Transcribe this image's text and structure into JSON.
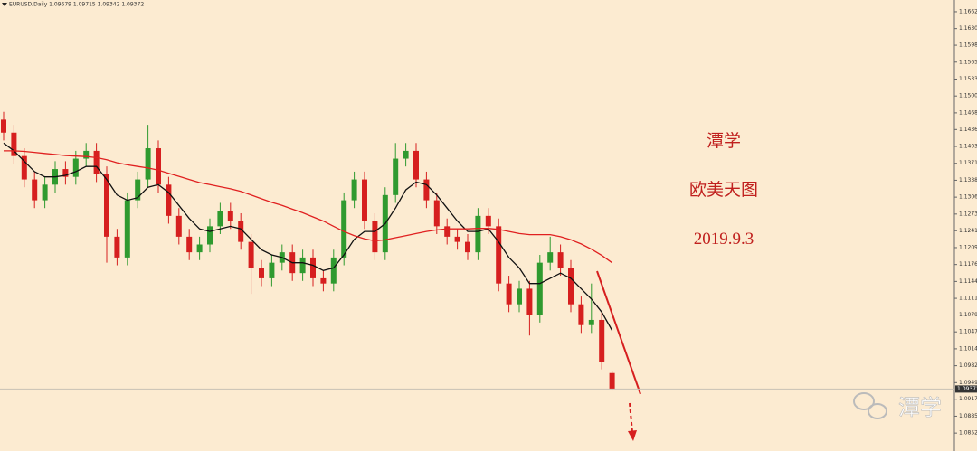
{
  "chart_data": {
    "type": "candlestick",
    "header": "EURUSD,Daily 1.09679 1.09715 1.09342 1.09372",
    "annotations": [
      "潭学",
      "欧美天图",
      "2019.9.3"
    ],
    "watermark": "潭学",
    "up_color": "#2f9a2f",
    "down_color": "#d61f1f",
    "candles": {
      "open": [
        1.1455,
        1.143,
        1.1385,
        1.134,
        1.13,
        1.133,
        1.136,
        1.1345,
        1.138,
        1.1395,
        1.135,
        1.123,
        1.119,
        1.13,
        1.134,
        1.14,
        1.133,
        1.127,
        1.123,
        1.12,
        1.1215,
        1.125,
        1.128,
        1.126,
        1.122,
        1.117,
        1.115,
        1.118,
        1.12,
        1.116,
        1.119,
        1.115,
        1.114,
        1.119,
        1.13,
        1.134,
        1.126,
        1.12,
        1.131,
        1.138,
        1.1395,
        1.134,
        1.13,
        1.125,
        1.123,
        1.122,
        1.12,
        1.127,
        1.125,
        1.114,
        1.11,
        1.113,
        1.108,
        1.118,
        1.12,
        1.117,
        1.11,
        1.106,
        1.107,
        1.09679
      ],
      "high": [
        1.147,
        1.1445,
        1.14,
        1.1355,
        1.1345,
        1.1375,
        1.1375,
        1.1395,
        1.141,
        1.141,
        1.1365,
        1.1245,
        1.1315,
        1.1355,
        1.1445,
        1.1415,
        1.1345,
        1.1285,
        1.1245,
        1.123,
        1.1265,
        1.1295,
        1.1295,
        1.1275,
        1.1235,
        1.1185,
        1.1195,
        1.1215,
        1.1215,
        1.1205,
        1.1205,
        1.1165,
        1.1205,
        1.1315,
        1.1355,
        1.1355,
        1.1275,
        1.1325,
        1.141,
        1.141,
        1.141,
        1.1355,
        1.1315,
        1.1265,
        1.1245,
        1.1235,
        1.1285,
        1.1285,
        1.1265,
        1.1155,
        1.1145,
        1.1145,
        1.1195,
        1.123,
        1.1215,
        1.1185,
        1.1115,
        1.114,
        1.1085,
        1.09715
      ],
      "low": [
        1.1415,
        1.137,
        1.1325,
        1.1285,
        1.1285,
        1.1315,
        1.133,
        1.133,
        1.1365,
        1.1335,
        1.118,
        1.1175,
        1.1175,
        1.1285,
        1.1325,
        1.1315,
        1.1255,
        1.1215,
        1.1185,
        1.1185,
        1.12,
        1.1235,
        1.1245,
        1.1205,
        1.112,
        1.1135,
        1.1135,
        1.1165,
        1.1145,
        1.1145,
        1.1135,
        1.1125,
        1.1125,
        1.1175,
        1.1285,
        1.1245,
        1.1185,
        1.1185,
        1.1295,
        1.1365,
        1.1325,
        1.1285,
        1.1235,
        1.1215,
        1.1205,
        1.1185,
        1.1185,
        1.1235,
        1.1125,
        1.1085,
        1.1085,
        1.104,
        1.1065,
        1.1165,
        1.1155,
        1.1085,
        1.1045,
        1.1045,
        1.0975,
        1.09342
      ],
      "close": [
        1.143,
        1.1385,
        1.134,
        1.13,
        1.133,
        1.136,
        1.1345,
        1.138,
        1.1395,
        1.135,
        1.123,
        1.119,
        1.13,
        1.134,
        1.14,
        1.133,
        1.127,
        1.123,
        1.12,
        1.1215,
        1.125,
        1.128,
        1.126,
        1.122,
        1.117,
        1.115,
        1.118,
        1.12,
        1.116,
        1.119,
        1.115,
        1.114,
        1.119,
        1.13,
        1.134,
        1.126,
        1.12,
        1.131,
        1.138,
        1.1395,
        1.134,
        1.13,
        1.125,
        1.123,
        1.122,
        1.12,
        1.127,
        1.125,
        1.114,
        1.11,
        1.113,
        1.108,
        1.118,
        1.12,
        1.117,
        1.11,
        1.106,
        1.107,
        1.099,
        1.09372
      ]
    },
    "lines": [
      {
        "color": "#111111",
        "values": [
          1.141,
          1.1395,
          1.1375,
          1.1355,
          1.1345,
          1.1345,
          1.1348,
          1.1355,
          1.1365,
          1.1365,
          1.134,
          1.131,
          1.13,
          1.1305,
          1.1325,
          1.133,
          1.1315,
          1.129,
          1.1265,
          1.1245,
          1.124,
          1.1245,
          1.125,
          1.1245,
          1.1225,
          1.1205,
          1.1195,
          1.119,
          1.118,
          1.118,
          1.1175,
          1.1165,
          1.117,
          1.1195,
          1.1225,
          1.124,
          1.124,
          1.1255,
          1.1285,
          1.132,
          1.1335,
          1.133,
          1.131,
          1.1285,
          1.126,
          1.124,
          1.124,
          1.1245,
          1.122,
          1.119,
          1.117,
          1.114,
          1.114,
          1.115,
          1.116,
          1.115,
          1.113,
          1.111,
          1.1085,
          1.105
        ]
      },
      {
        "color": "#e02020",
        "values": [
          1.1395,
          1.1395,
          1.1394,
          1.1392,
          1.139,
          1.1388,
          1.1386,
          1.1385,
          1.1384,
          1.1382,
          1.1378,
          1.1372,
          1.1368,
          1.1365,
          1.1362,
          1.1358,
          1.1352,
          1.1346,
          1.134,
          1.1334,
          1.133,
          1.1326,
          1.1322,
          1.1317,
          1.131,
          1.1303,
          1.1296,
          1.129,
          1.1283,
          1.1276,
          1.1268,
          1.126,
          1.125,
          1.124,
          1.1232,
          1.1226,
          1.1222,
          1.1224,
          1.1228,
          1.1232,
          1.1236,
          1.124,
          1.1243,
          1.1245,
          1.1245,
          1.1245,
          1.1246,
          1.1246,
          1.1244,
          1.124,
          1.1236,
          1.1234,
          1.1234,
          1.1234,
          1.123,
          1.1224,
          1.1216,
          1.1206,
          1.1194,
          1.118
        ]
      }
    ],
    "ylim": [
      1.0818,
      1.1685
    ],
    "yticks": [
      {
        "value": 1.16625,
        "label": "1.16625"
      },
      {
        "value": 1.163,
        "label": "1.16300"
      },
      {
        "value": 1.1598,
        "label": "1.15980"
      },
      {
        "value": 1.15655,
        "label": "1.15655"
      },
      {
        "value": 1.1533,
        "label": "1.15330"
      },
      {
        "value": 1.15005,
        "label": "1.15005"
      },
      {
        "value": 1.1468,
        "label": "1.14680"
      },
      {
        "value": 1.1436,
        "label": "1.14360"
      },
      {
        "value": 1.14035,
        "label": "1.14035"
      },
      {
        "value": 1.1371,
        "label": "1.13710"
      },
      {
        "value": 1.13385,
        "label": "1.13385"
      },
      {
        "value": 1.1306,
        "label": "1.13060"
      },
      {
        "value": 1.12735,
        "label": "1.12735"
      },
      {
        "value": 1.12415,
        "label": "1.12415"
      },
      {
        "value": 1.1209,
        "label": "1.12090"
      },
      {
        "value": 1.11765,
        "label": "1.11765"
      },
      {
        "value": 1.1144,
        "label": "1.11440"
      },
      {
        "value": 1.11115,
        "label": "1.11115"
      },
      {
        "value": 1.10795,
        "label": "1.10795"
      },
      {
        "value": 1.1047,
        "label": "1.10470"
      },
      {
        "value": 1.10145,
        "label": "1.10145"
      },
      {
        "value": 1.0982,
        "label": "1.09820"
      },
      {
        "value": 1.09495,
        "label": "1.09495"
      },
      {
        "value": 1.09175,
        "label": "1.09175"
      },
      {
        "value": 1.0885,
        "label": "1.08850"
      },
      {
        "value": 1.08525,
        "label": "1.08525"
      }
    ]
  }
}
